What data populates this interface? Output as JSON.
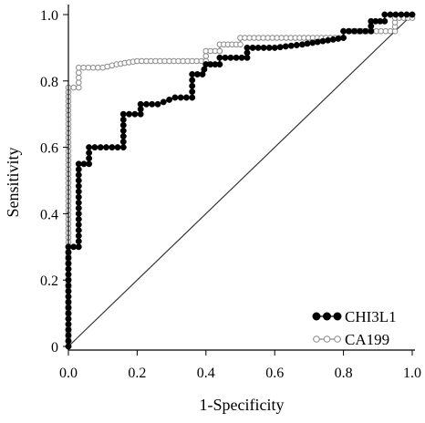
{
  "chart_data": {
    "type": "line",
    "title": "",
    "xlabel": "1-Specificity",
    "ylabel": "Sensitivity",
    "xlim": [
      0,
      1
    ],
    "ylim": [
      0,
      1
    ],
    "x_ticks": [
      "0.0",
      "0.2",
      "0.4",
      "0.6",
      "0.8",
      "1.0"
    ],
    "y_ticks": [
      "0",
      "0.2",
      "0.4",
      "0.6",
      "0.8",
      "1.0"
    ],
    "grid": false,
    "legend_position": "bottom-right",
    "reference_line": {
      "from": [
        0,
        0
      ],
      "to": [
        1,
        1
      ],
      "color": "#333333"
    },
    "series": [
      {
        "name": "CHI3L1",
        "color": "#000000",
        "marker": "filled-circle",
        "points": [
          [
            0.0,
            0.0
          ],
          [
            0.0,
            0.3
          ],
          [
            0.03,
            0.3
          ],
          [
            0.03,
            0.55
          ],
          [
            0.06,
            0.55
          ],
          [
            0.06,
            0.6
          ],
          [
            0.16,
            0.6
          ],
          [
            0.16,
            0.7
          ],
          [
            0.21,
            0.7
          ],
          [
            0.21,
            0.73
          ],
          [
            0.26,
            0.73
          ],
          [
            0.31,
            0.75
          ],
          [
            0.36,
            0.75
          ],
          [
            0.36,
            0.82
          ],
          [
            0.39,
            0.82
          ],
          [
            0.4,
            0.85
          ],
          [
            0.44,
            0.85
          ],
          [
            0.44,
            0.87
          ],
          [
            0.52,
            0.87
          ],
          [
            0.52,
            0.9
          ],
          [
            0.6,
            0.9
          ],
          [
            0.68,
            0.91
          ],
          [
            0.74,
            0.92
          ],
          [
            0.8,
            0.93
          ],
          [
            0.8,
            0.95
          ],
          [
            0.88,
            0.95
          ],
          [
            0.88,
            0.98
          ],
          [
            0.92,
            0.98
          ],
          [
            0.92,
            1.0
          ],
          [
            1.0,
            1.0
          ]
        ]
      },
      {
        "name": "CA199",
        "color": "#8a8a8a",
        "marker": "open-circle",
        "points": [
          [
            0.0,
            0.0
          ],
          [
            0.0,
            0.78
          ],
          [
            0.03,
            0.78
          ],
          [
            0.03,
            0.84
          ],
          [
            0.1,
            0.84
          ],
          [
            0.14,
            0.85
          ],
          [
            0.2,
            0.86
          ],
          [
            0.4,
            0.86
          ],
          [
            0.4,
            0.89
          ],
          [
            0.44,
            0.89
          ],
          [
            0.44,
            0.91
          ],
          [
            0.5,
            0.91
          ],
          [
            0.5,
            0.93
          ],
          [
            0.66,
            0.93
          ],
          [
            0.8,
            0.93
          ],
          [
            0.8,
            0.95
          ],
          [
            0.95,
            0.95
          ],
          [
            0.95,
            0.99
          ],
          [
            1.0,
            0.99
          ]
        ]
      }
    ]
  }
}
